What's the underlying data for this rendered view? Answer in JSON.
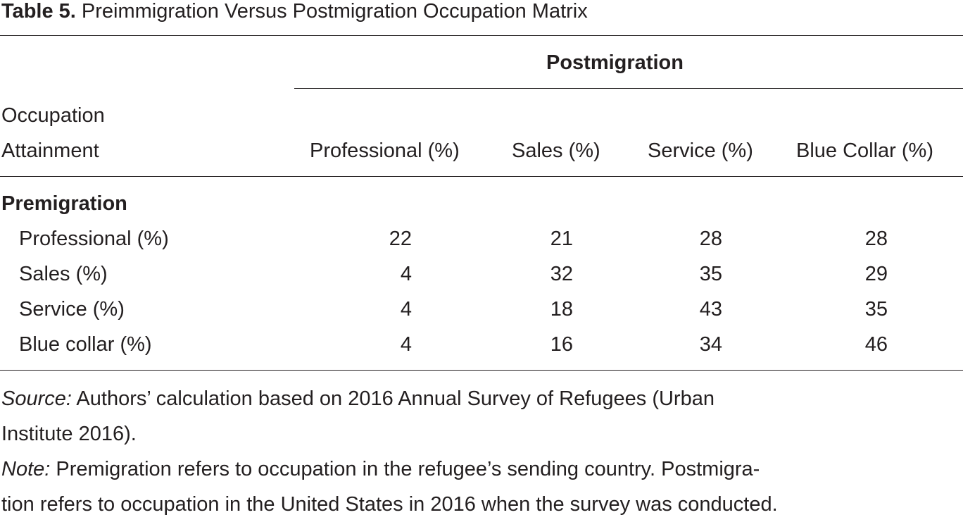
{
  "caption": {
    "label": "Table 5.",
    "title": "Preimmigration Versus Postmigration Occupation Matrix"
  },
  "header": {
    "spanner": "Postmigration",
    "stub_line1": "Occupation",
    "stub_line2": "Attainment",
    "columns": [
      "Professional (%)",
      "Sales (%)",
      "Service (%)",
      "Blue Collar (%)"
    ]
  },
  "body": {
    "group_label": "Premigration",
    "rows": [
      {
        "label": "Professional (%)",
        "values": [
          "22",
          "21",
          "28",
          "28"
        ]
      },
      {
        "label": "Sales (%)",
        "values": [
          "4",
          "32",
          "35",
          "29"
        ]
      },
      {
        "label": "Service (%)",
        "values": [
          "4",
          "18",
          "43",
          "35"
        ]
      },
      {
        "label": "Blue collar (%)",
        "values": [
          "4",
          "16",
          "34",
          "46"
        ]
      }
    ]
  },
  "notes": {
    "source_label": "Source:",
    "source_line1": " Authors’ calculation based on 2016 Annual Survey of Refugees (Urban",
    "source_line2": "Institute 2016).",
    "note_label": "Note:",
    "note_line1": " Premigration refers to occupation in the refugee’s sending country. Postmigra-",
    "note_line2": "tion refers to occupation in the United States in 2016 when the survey was conducted."
  }
}
